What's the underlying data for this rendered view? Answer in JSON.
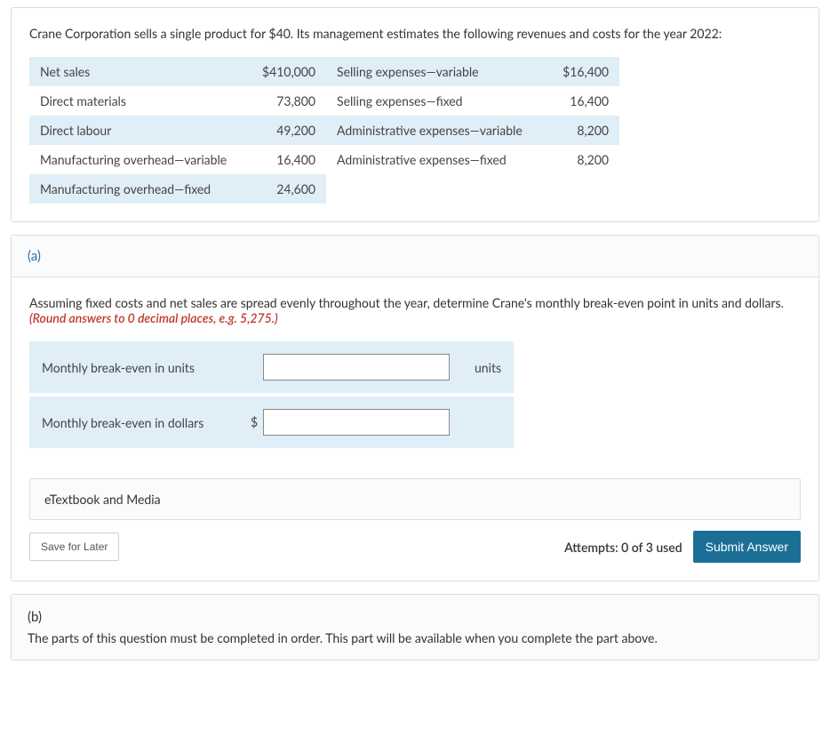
{
  "intro": "Crane Corporation sells a single product for $40. Its management estimates the following revenues and costs for the year 2022:",
  "table": {
    "col1_width": 250,
    "col2_width": 80,
    "col3_width": 250,
    "col4_width": 80,
    "rows": [
      {
        "l1": "Net sales",
        "v1": "$410,000",
        "l2": "Selling expenses—variable",
        "v2": "$16,400"
      },
      {
        "l1": "Direct materials",
        "v1": "73,800",
        "l2": "Selling expenses—fixed",
        "v2": "16,400"
      },
      {
        "l1": "Direct labour",
        "v1": "49,200",
        "l2": "Administrative expenses—variable",
        "v2": "8,200"
      },
      {
        "l1": "Manufacturing overhead—variable",
        "v1": "16,400",
        "l2": "Administrative expenses—fixed",
        "v2": "8,200"
      },
      {
        "l1": "Manufacturing overhead—fixed",
        "v1": "24,600",
        "l2": "",
        "v2": ""
      }
    ]
  },
  "partA": {
    "label": "(a)",
    "instruction_prefix": "Assuming fixed costs and net sales are spread evenly throughout the year, determine Crane's monthly break-even point in units and dollars. ",
    "instruction_emph": "(Round answers to 0 decimal places, e.g. 5,275.)",
    "answers": [
      {
        "label": "Monthly break-even in units",
        "prefix": "",
        "suffix": "units",
        "value": ""
      },
      {
        "label": "Monthly break-even in dollars",
        "prefix": "$",
        "suffix": "",
        "value": ""
      }
    ],
    "etextbook": "eTextbook and Media",
    "save": "Save for Later",
    "attempts": "Attempts: 0 of 3 used",
    "submit": "Submit Answer"
  },
  "partB": {
    "label": "(b)",
    "msg": "The parts of this question must be completed in order. This part will be available when you complete the part above."
  },
  "colors": {
    "card_border": "#d8dde2",
    "band_bg": "#e0eef7",
    "link_blue": "#2d6ea5",
    "emph_red": "#c0392b",
    "submit_bg": "#1b6f96"
  }
}
